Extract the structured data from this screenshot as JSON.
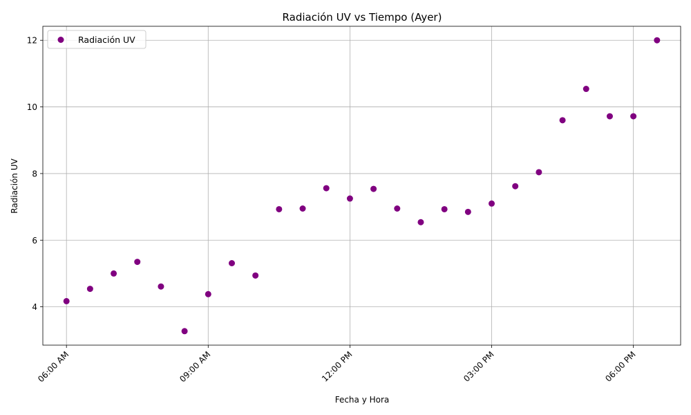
{
  "chart_data": {
    "type": "scatter",
    "title": "Radiación UV vs Tiempo (Ayer)",
    "xlabel": "Fecha y Hora",
    "ylabel": "Radiación UV",
    "x_unit": "hours",
    "xlim": [
      5.5,
      19.0
    ],
    "ylim": [
      2.85,
      12.42
    ],
    "x_ticks": [
      6,
      9,
      12,
      15,
      18
    ],
    "x_tick_labels": [
      "06:00 AM",
      "09:00 AM",
      "12:00 PM",
      "03:00 PM",
      "06:00 PM"
    ],
    "y_ticks": [
      4,
      6,
      8,
      10,
      12
    ],
    "y_tick_labels": [
      "4",
      "6",
      "8",
      "10",
      "12"
    ],
    "grid": true,
    "legend_position": "top-left",
    "color": "#800080",
    "series": [
      {
        "name": "Radiación UV",
        "x": [
          6.0,
          6.5,
          7.0,
          7.5,
          8.0,
          8.5,
          9.0,
          9.5,
          10.0,
          10.5,
          11.0,
          11.5,
          12.0,
          12.5,
          13.0,
          13.5,
          14.0,
          14.5,
          15.0,
          15.5,
          16.0,
          16.5,
          17.0,
          17.5,
          18.0,
          18.5
        ],
        "y": [
          4.17,
          4.54,
          5.0,
          5.35,
          4.61,
          3.27,
          4.38,
          5.31,
          4.94,
          6.93,
          6.95,
          7.56,
          7.25,
          7.54,
          6.95,
          6.54,
          6.93,
          6.85,
          7.1,
          7.62,
          8.04,
          9.6,
          10.54,
          9.72,
          9.72,
          12.0
        ]
      }
    ]
  }
}
